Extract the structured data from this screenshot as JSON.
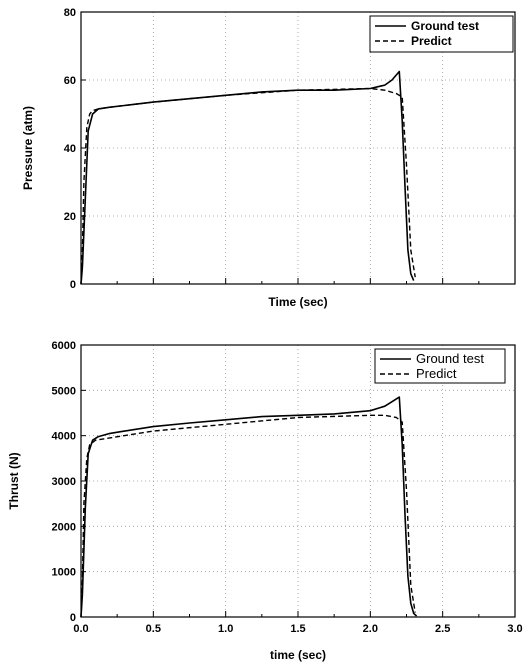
{
  "chart_data": [
    {
      "type": "line",
      "title": "",
      "xlabel": "Time (sec)",
      "ylabel": "Pressure (atm)",
      "xlim": [
        0,
        3.0
      ],
      "ylim": [
        0,
        80
      ],
      "x_ticks_labeled": false,
      "y_ticks": [
        "0",
        "20",
        "40",
        "60",
        "80"
      ],
      "grid": true,
      "legend": "top-right",
      "series": [
        {
          "name": "Ground test",
          "style": "solid",
          "color": "#000000",
          "x": [
            0.0,
            0.01,
            0.03,
            0.05,
            0.08,
            0.12,
            0.2,
            0.3,
            0.5,
            0.75,
            1.0,
            1.25,
            1.5,
            1.75,
            2.0,
            2.1,
            2.15,
            2.2,
            2.22,
            2.24,
            2.26,
            2.28,
            2.3
          ],
          "y": [
            0,
            5,
            25,
            45,
            50,
            51.5,
            52,
            52.5,
            53.5,
            54.5,
            55.5,
            56.5,
            57,
            57,
            57.5,
            58.5,
            60,
            62.5,
            48,
            28,
            10,
            3,
            1
          ]
        },
        {
          "name": "Predict",
          "style": "dashed",
          "color": "#000000",
          "x": [
            0.0,
            0.01,
            0.02,
            0.04,
            0.06,
            0.08,
            0.12,
            0.2,
            0.5,
            1.0,
            1.5,
            2.0,
            2.1,
            2.18,
            2.22,
            2.25,
            2.28,
            2.31
          ],
          "y": [
            0,
            10,
            30,
            46,
            50,
            51,
            51.5,
            52,
            53.5,
            55.5,
            57,
            57.5,
            57,
            56,
            55,
            35,
            10,
            2
          ]
        }
      ]
    },
    {
      "type": "line",
      "title": "",
      "xlabel": "time (sec)",
      "ylabel": "Thrust (N)",
      "xlim": [
        0.0,
        3.0
      ],
      "ylim": [
        0,
        6000
      ],
      "x_ticks": [
        "0.0",
        "0.5",
        "1.0",
        "1.5",
        "2.0",
        "2.5",
        "3.0"
      ],
      "y_ticks": [
        "0",
        "1000",
        "2000",
        "3000",
        "4000",
        "5000",
        "6000"
      ],
      "grid": true,
      "legend": "top-right",
      "series": [
        {
          "name": "Ground test",
          "style": "solid",
          "color": "#000000",
          "x": [
            0.0,
            0.01,
            0.03,
            0.05,
            0.08,
            0.12,
            0.2,
            0.3,
            0.5,
            0.75,
            1.0,
            1.25,
            1.5,
            1.75,
            2.0,
            2.1,
            2.15,
            2.2,
            2.22,
            2.24,
            2.26,
            2.28,
            2.3,
            2.32
          ],
          "y": [
            0,
            500,
            2400,
            3600,
            3900,
            3980,
            4050,
            4100,
            4200,
            4280,
            4350,
            4420,
            4450,
            4480,
            4550,
            4650,
            4750,
            4850,
            3800,
            2200,
            900,
            300,
            80,
            20
          ]
        },
        {
          "name": "Predict",
          "style": "dashed",
          "color": "#000000",
          "x": [
            0.0,
            0.01,
            0.02,
            0.04,
            0.06,
            0.1,
            0.2,
            0.5,
            1.0,
            1.5,
            2.0,
            2.1,
            2.18,
            2.22,
            2.25,
            2.28,
            2.31
          ],
          "y": [
            0,
            800,
            2500,
            3500,
            3800,
            3900,
            3950,
            4100,
            4250,
            4400,
            4450,
            4450,
            4400,
            4300,
            2800,
            700,
            100
          ]
        }
      ]
    }
  ]
}
